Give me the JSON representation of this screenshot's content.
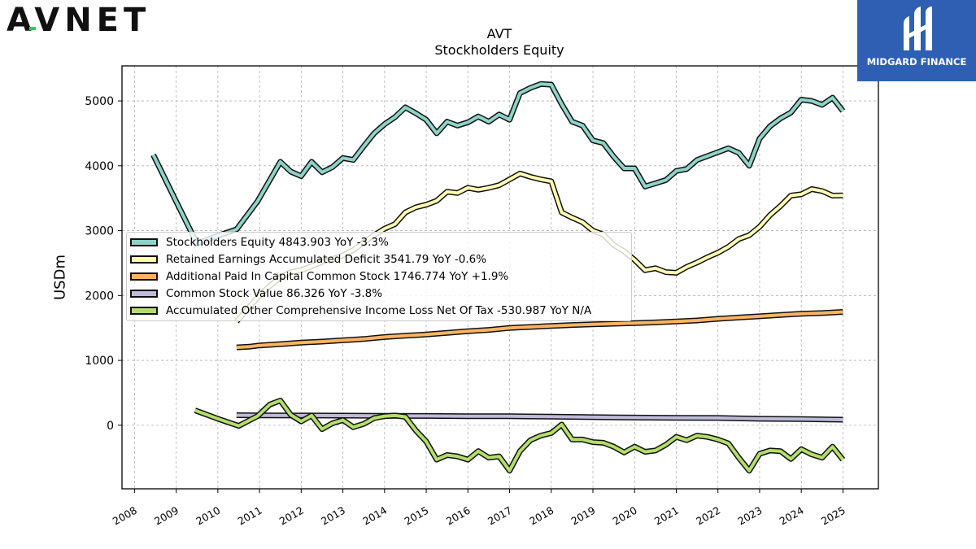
{
  "brand": {
    "logo_text": "AVNET",
    "badge_text": "MIDGARD FINANCE"
  },
  "chart_data": {
    "type": "line",
    "title": "AVT",
    "subtitle": "Stockholders  Equity",
    "ylabel": "USDm",
    "xlabel": "",
    "xlim": [
      2007.7,
      2025.85
    ],
    "ylim": [
      -980,
      5540
    ],
    "yticks": [
      0,
      1000,
      2000,
      3000,
      4000,
      5000
    ],
    "xticks": [
      "2008",
      "2009",
      "2010",
      "2011",
      "2012",
      "2013",
      "2014",
      "2015",
      "2016",
      "2017",
      "2018",
      "2019",
      "2020",
      "2021",
      "2022",
      "2023",
      "2024",
      "2025"
    ],
    "grid": true,
    "legend_position": "center-left",
    "series": [
      {
        "name": "Stockholders Equity",
        "legend": "Stockholders Equity  4843.903 YoY -3.3%",
        "color": "#8dd3c7",
        "x": [
          2008.45,
          2009.0,
          2009.5,
          2009.9,
          2010.45,
          2010.95,
          2011.3,
          2011.5,
          2011.75,
          2012.0,
          2012.25,
          2012.5,
          2012.75,
          2013.0,
          2013.25,
          2013.5,
          2013.75,
          2014.0,
          2014.25,
          2014.5,
          2014.75,
          2015.0,
          2015.25,
          2015.5,
          2015.75,
          2016.0,
          2016.25,
          2016.5,
          2016.75,
          2017.0,
          2017.25,
          2017.5,
          2017.75,
          2018.0,
          2018.25,
          2018.5,
          2018.75,
          2019.0,
          2019.25,
          2019.5,
          2019.75,
          2020.0,
          2020.25,
          2020.5,
          2020.75,
          2021.0,
          2021.25,
          2021.5,
          2021.75,
          2022.0,
          2022.25,
          2022.5,
          2022.75,
          2023.0,
          2023.25,
          2023.5,
          2023.75,
          2024.0,
          2024.25,
          2024.5,
          2024.75,
          2025.0
        ],
        "y": [
          4170,
          3450,
          2800,
          2900,
          3020,
          3450,
          3840,
          4060,
          3910,
          3840,
          4060,
          3900,
          3980,
          4120,
          4090,
          4300,
          4500,
          4640,
          4750,
          4900,
          4810,
          4710,
          4500,
          4680,
          4620,
          4670,
          4760,
          4680,
          4790,
          4710,
          5120,
          5200,
          5260,
          5250,
          4950,
          4680,
          4620,
          4390,
          4350,
          4140,
          3960,
          3960,
          3680,
          3730,
          3780,
          3920,
          3950,
          4090,
          4150,
          4210,
          4270,
          4200,
          4000,
          4420,
          4610,
          4730,
          4820,
          5020,
          5000,
          4940,
          5050,
          4844
        ]
      },
      {
        "name": "Retained Earnings Accumulated Deficit",
        "legend": "Retained Earnings Accumulated Deficit  3541.79 YoY -0.6%",
        "color": "#ffffb3",
        "x": [
          2010.45,
          2010.75,
          2011.0,
          2011.25,
          2011.5,
          2011.75,
          2012.0,
          2012.25,
          2012.5,
          2012.75,
          2013.0,
          2013.25,
          2013.5,
          2013.75,
          2014.0,
          2014.25,
          2014.5,
          2014.75,
          2015.0,
          2015.25,
          2015.5,
          2015.75,
          2016.0,
          2016.25,
          2016.5,
          2016.75,
          2017.0,
          2017.25,
          2017.5,
          2017.75,
          2018.0,
          2018.25,
          2018.5,
          2018.75,
          2019.0,
          2019.25,
          2019.5,
          2019.75,
          2020.0,
          2020.25,
          2020.5,
          2020.75,
          2021.0,
          2021.25,
          2021.5,
          2021.75,
          2022.0,
          2022.25,
          2022.5,
          2022.75,
          2023.0,
          2023.25,
          2023.5,
          2023.75,
          2024.0,
          2024.25,
          2024.5,
          2024.75,
          2025.0
        ],
        "y": [
          1600,
          1820,
          2000,
          2150,
          2280,
          2360,
          2390,
          2450,
          2520,
          2560,
          2620,
          2700,
          2820,
          2930,
          3030,
          3100,
          3280,
          3360,
          3400,
          3460,
          3600,
          3580,
          3660,
          3630,
          3660,
          3700,
          3790,
          3880,
          3830,
          3790,
          3760,
          3280,
          3200,
          3130,
          3000,
          2940,
          2780,
          2680,
          2550,
          2390,
          2420,
          2360,
          2350,
          2440,
          2510,
          2590,
          2660,
          2750,
          2870,
          2930,
          3060,
          3240,
          3380,
          3540,
          3560,
          3640,
          3610,
          3540,
          3542
        ]
      },
      {
        "name": "Additional Paid In Capital Common Stock",
        "legend": "Additional Paid In Capital Common Stock  1746.774 YoY +1.9%",
        "color": "#fdb462",
        "x": [
          2010.45,
          2010.75,
          2011.0,
          2011.5,
          2012.0,
          2012.5,
          2013.0,
          2013.25,
          2013.5,
          2014.0,
          2014.5,
          2015.0,
          2015.5,
          2016.0,
          2016.5,
          2017.0,
          2017.5,
          2018.0,
          2018.5,
          2019.0,
          2019.5,
          2020.0,
          2020.5,
          2021.0,
          2021.5,
          2022.0,
          2022.5,
          2023.0,
          2023.5,
          2024.0,
          2024.5,
          2025.0
        ],
        "y": [
          1200,
          1210,
          1230,
          1250,
          1275,
          1290,
          1310,
          1320,
          1330,
          1360,
          1380,
          1400,
          1425,
          1450,
          1470,
          1500,
          1515,
          1530,
          1545,
          1555,
          1565,
          1575,
          1585,
          1600,
          1615,
          1640,
          1660,
          1680,
          1700,
          1720,
          1730,
          1747
        ]
      },
      {
        "name": "Common Stock Value",
        "legend": "Common Stock Value  86.326 YoY -3.8%",
        "color": "#bebada",
        "x": [
          2010.45,
          2011.0,
          2012.0,
          2013.0,
          2014.0,
          2015.0,
          2016.0,
          2017.0,
          2018.0,
          2019.0,
          2020.0,
          2021.0,
          2022.0,
          2023.0,
          2024.0,
          2025.0
        ],
        "y": [
          155,
          152,
          150,
          148,
          146,
          143,
          140,
          138,
          133,
          125,
          118,
          115,
          112,
          100,
          95,
          86
        ]
      },
      {
        "name": "Accumulated Other Comprehensive Income Loss Net Of Tax",
        "legend": "Accumulated Other Comprehensive Income Loss Net Of Tax  -530.987 YoY N/A",
        "color": "#b3de69",
        "x": [
          2009.45,
          2010.0,
          2010.5,
          2010.95,
          2011.25,
          2011.5,
          2011.75,
          2012.0,
          2012.25,
          2012.5,
          2012.75,
          2013.0,
          2013.25,
          2013.5,
          2013.75,
          2014.0,
          2014.25,
          2014.5,
          2014.75,
          2015.0,
          2015.25,
          2015.5,
          2015.75,
          2016.0,
          2016.25,
          2016.5,
          2016.75,
          2017.0,
          2017.25,
          2017.5,
          2017.75,
          2018.0,
          2018.25,
          2018.5,
          2018.75,
          2019.0,
          2019.25,
          2019.5,
          2019.75,
          2020.0,
          2020.25,
          2020.5,
          2020.75,
          2021.0,
          2021.25,
          2021.5,
          2021.75,
          2022.0,
          2022.25,
          2022.5,
          2022.75,
          2023.0,
          2023.25,
          2023.5,
          2023.75,
          2024.0,
          2024.25,
          2024.5,
          2024.75,
          2025.0
        ],
        "y": [
          230,
          100,
          -10,
          140,
          320,
          380,
          160,
          60,
          150,
          -60,
          30,
          80,
          -30,
          20,
          110,
          140,
          150,
          130,
          -80,
          -250,
          -530,
          -460,
          -480,
          -530,
          -400,
          -500,
          -480,
          -700,
          -400,
          -230,
          -160,
          -120,
          10,
          -220,
          -220,
          -260,
          -270,
          -330,
          -420,
          -330,
          -410,
          -390,
          -300,
          -180,
          -230,
          -160,
          -180,
          -220,
          -280,
          -500,
          -700,
          -440,
          -390,
          -400,
          -520,
          -370,
          -450,
          -500,
          -330,
          -531
        ]
      }
    ]
  }
}
